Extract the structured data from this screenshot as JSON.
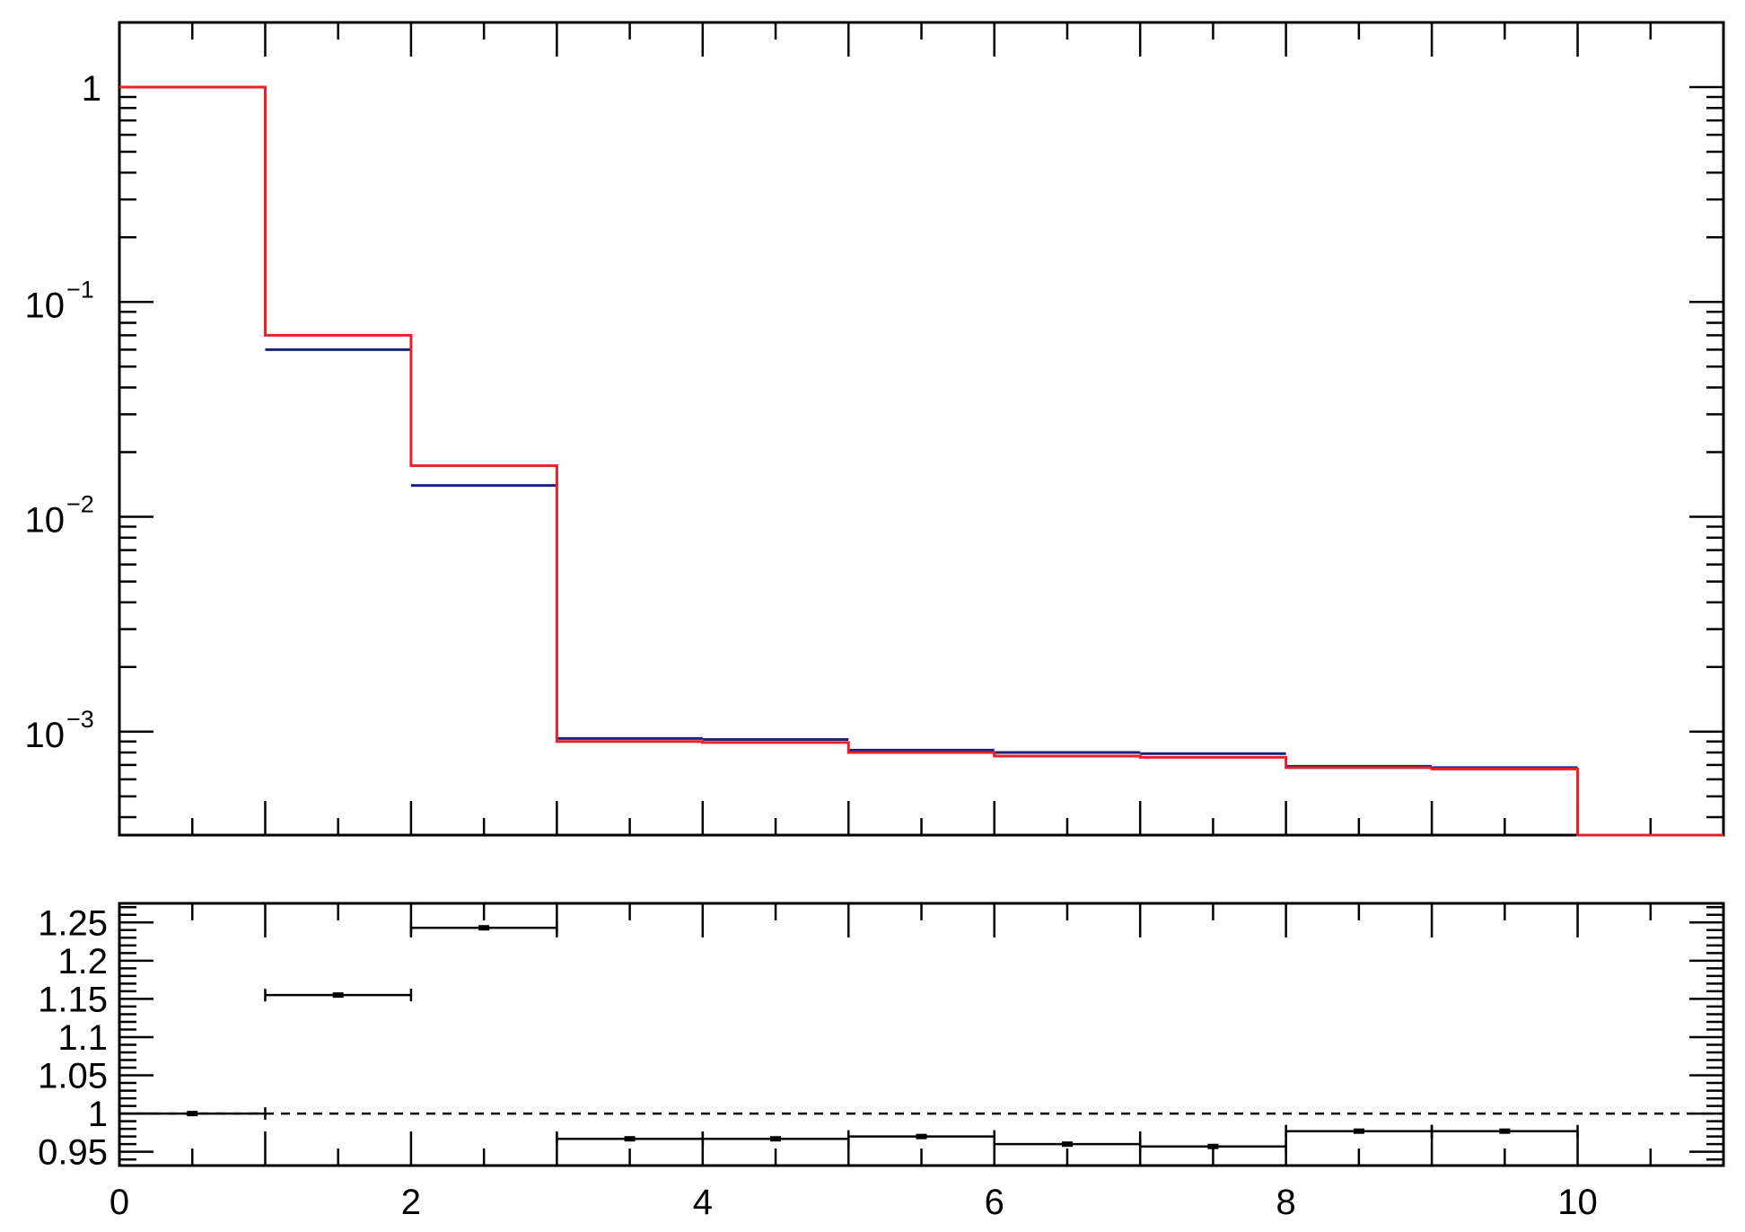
{
  "chart_data": [
    {
      "type": "line",
      "step": true,
      "yscale": "log",
      "xlim": [
        0,
        11
      ],
      "ylim": [
        0.00033,
        2
      ],
      "bin_edges": [
        0,
        1,
        2,
        3,
        4,
        5,
        6,
        7,
        8,
        9,
        10,
        11
      ],
      "series": [
        {
          "color": "#1a237e",
          "values": [
            1.0,
            0.06,
            0.014,
            0.00093,
            0.00092,
            0.00082,
            0.0008,
            0.00079,
            0.00069,
            0.00068,
            0
          ]
        },
        {
          "color": "#e8202a",
          "values": [
            1.0,
            0.07,
            0.0173,
            0.0009,
            0.00089,
            0.0008,
            0.00077,
            0.00076,
            0.00068,
            0.00067,
            0
          ]
        }
      ],
      "yticks": [
        {
          "value": 1,
          "label": "1"
        },
        {
          "value": 0.1,
          "base": "10",
          "exp": "−1"
        },
        {
          "value": 0.01,
          "base": "10",
          "exp": "−2"
        },
        {
          "value": 0.001,
          "base": "10",
          "exp": "−3"
        }
      ],
      "grid": false,
      "legend": "none"
    },
    {
      "type": "scatter",
      "error_bars": true,
      "xlim": [
        0,
        11
      ],
      "ylim": [
        0.932,
        1.275
      ],
      "reference_line": 1.0,
      "x": [
        0.5,
        1.5,
        2.5,
        3.5,
        4.5,
        5.5,
        6.5,
        7.5,
        8.5,
        9.5
      ],
      "x_half_width": 0.5,
      "y": [
        1.0,
        1.155,
        1.243,
        0.967,
        0.967,
        0.97,
        0.96,
        0.957,
        0.977,
        0.977
      ],
      "y_err": [
        0.001,
        0.002,
        0.003,
        0.002,
        0.002,
        0.002,
        0.002,
        0.002,
        0.002,
        0.002
      ],
      "yticks": [
        "0.95",
        "1",
        "1.05",
        "1.1",
        "1.15",
        "1.2",
        "1.25"
      ],
      "xticks": [
        "0",
        "2",
        "4",
        "6",
        "8",
        "10"
      ],
      "grid": false
    }
  ]
}
